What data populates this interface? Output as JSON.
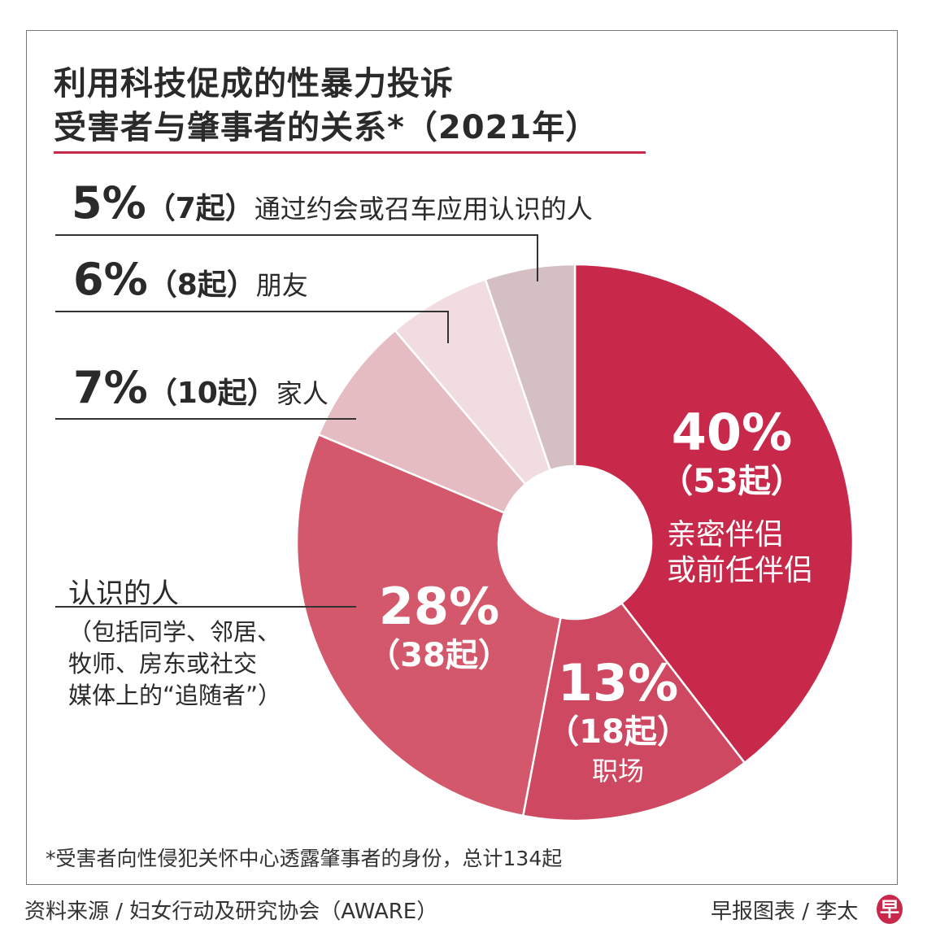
{
  "chart_data": {
    "type": "pie",
    "donut": true,
    "title": "利用科技促成的性暴力投诉",
    "subtitle": "受害者与肇事者的关系*（2021年）",
    "unit": "起",
    "slices": [
      {
        "name": "亲密伴侣或前任伴侣",
        "name_lines": [
          "亲密伴侣",
          "或前任伴侣"
        ],
        "percent": "40%",
        "count": 53,
        "count_label": "（53起）",
        "color": "#c8294a"
      },
      {
        "name": "职场",
        "percent": "13%",
        "count": 18,
        "count_label": "（18起）",
        "color": "#cf4862"
      },
      {
        "name": "认识的人",
        "detail_lines": [
          "（包括同学、邻居、",
          "牧师、房东或社交",
          "媒体上的“追随者”）"
        ],
        "percent": "28%",
        "count": 38,
        "count_label": "（38起）",
        "color": "#d4586c"
      },
      {
        "name": "家人",
        "percent": "7%",
        "count": 10,
        "count_label": "（10起）",
        "color": "#e6bcc3"
      },
      {
        "name": "朋友",
        "percent": "6%",
        "count": 8,
        "count_label": "（8起）",
        "color": "#f1dde0"
      },
      {
        "name": "通过约会或召车应用认识的人",
        "percent": "5%",
        "count": 7,
        "count_label": "（7起）",
        "color": "#d4bfc3"
      }
    ]
  },
  "footnote": "*受害者向性侵犯关怀中心透露肇事者的身份，总计134起",
  "source": "资料来源 / 妇女行动及研究协会（AWARE）",
  "credit": "早报图表 / 李太",
  "logo_text": "早",
  "accent": "#c8294a"
}
